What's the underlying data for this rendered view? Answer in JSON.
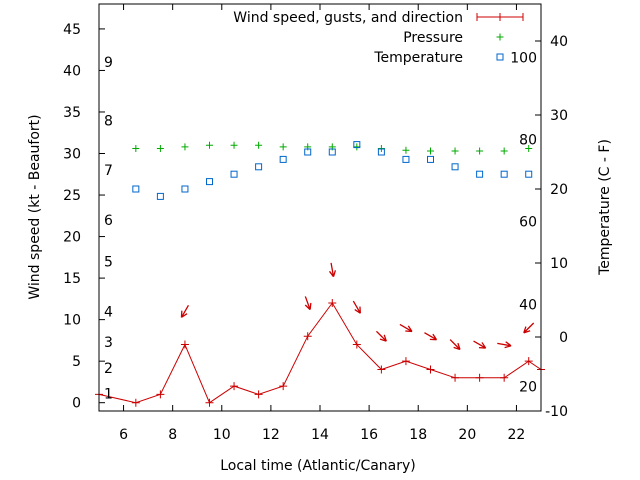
{
  "chart_data": {
    "type": "line",
    "xlabel": "Local time (Atlantic/Canary)",
    "ylabel_left": "Wind speed (kt - Beaufort)",
    "ylabel_right": "Temperature (C - F)",
    "xlim": [
      5,
      23
    ],
    "ylim_left": [
      -1,
      48
    ],
    "ylim_right": [
      -10,
      45
    ],
    "x_ticks": [
      6,
      8,
      10,
      12,
      14,
      16,
      18,
      20,
      22
    ],
    "y_left_ticks": [
      0,
      5,
      10,
      15,
      20,
      25,
      30,
      35,
      40,
      45
    ],
    "y_right_ticks": [
      -10,
      0,
      10,
      20,
      30,
      40
    ],
    "beaufort_labels": [
      {
        "label": "1",
        "y": 1.1
      },
      {
        "label": "2",
        "y": 4.2
      },
      {
        "label": "3",
        "y": 7.3
      },
      {
        "label": "4",
        "y": 11.0
      },
      {
        "label": "5",
        "y": 17.0
      },
      {
        "label": "6",
        "y": 22.0
      },
      {
        "label": "7",
        "y": 28.0
      },
      {
        "label": "8",
        "y": 34.0
      },
      {
        "label": "9",
        "y": 41.0
      }
    ],
    "fahrenheit_labels": [
      {
        "label": "20",
        "temp": -6.7
      },
      {
        "label": "40",
        "temp": 4.4
      },
      {
        "label": "60",
        "temp": 15.6
      },
      {
        "label": "80",
        "temp": 26.7
      },
      {
        "label": "100",
        "temp": 37.8
      }
    ],
    "legend_position": "top-right",
    "series": [
      {
        "name": "Wind speed, gusts, and direction",
        "color": "#cc0000",
        "marker": "plus-line",
        "x": [
          5,
          6.5,
          7.5,
          8.5,
          9.5,
          10.5,
          11.5,
          12.5,
          13.5,
          14.5,
          15.5,
          16.5,
          17.5,
          18.5,
          19.5,
          20.5,
          21.5,
          22.5,
          23
        ],
        "y": [
          1,
          0,
          1,
          7,
          0,
          2,
          1,
          2,
          8,
          12,
          7,
          4,
          5,
          4,
          3,
          3,
          3,
          5,
          4
        ]
      },
      {
        "name": "Pressure",
        "color": "#00aa00",
        "marker": "plus",
        "x": [
          6.5,
          7.5,
          8.5,
          9.5,
          10.5,
          11.5,
          12.5,
          13.5,
          14.5,
          15.5,
          16.5,
          17.5,
          18.5,
          19.5,
          20.5,
          21.5,
          22.5
        ],
        "y": [
          30.6,
          30.6,
          30.8,
          31,
          31,
          31,
          30.8,
          30.8,
          30.8,
          30.8,
          30.6,
          30.4,
          30.3,
          30.3,
          30.3,
          30.3,
          30.6
        ]
      },
      {
        "name": "Temperature",
        "color": "#0066cc",
        "marker": "square",
        "x": [
          6.5,
          7.5,
          8.5,
          9.5,
          10.5,
          11.5,
          12.5,
          13.5,
          14.5,
          15.5,
          16.5,
          17.5,
          18.5,
          19.5,
          20.5,
          21.5,
          22.5
        ],
        "y": [
          20,
          19,
          20,
          21,
          22,
          23,
          24,
          25,
          25,
          26,
          25,
          24,
          24,
          23,
          22,
          22,
          22
        ]
      }
    ],
    "gust_arrows": {
      "color": "#cc0000",
      "x": [
        8.5,
        13.5,
        14.5,
        15.5,
        16.5,
        17.5,
        18.5,
        19.5,
        20.5,
        21.5,
        22.5
      ],
      "y": [
        11,
        12,
        16,
        11.5,
        8,
        9,
        8,
        7,
        7,
        7,
        9
      ],
      "direction_deg": [
        30,
        340,
        350,
        330,
        315,
        300,
        300,
        315,
        300,
        280,
        45
      ]
    }
  }
}
